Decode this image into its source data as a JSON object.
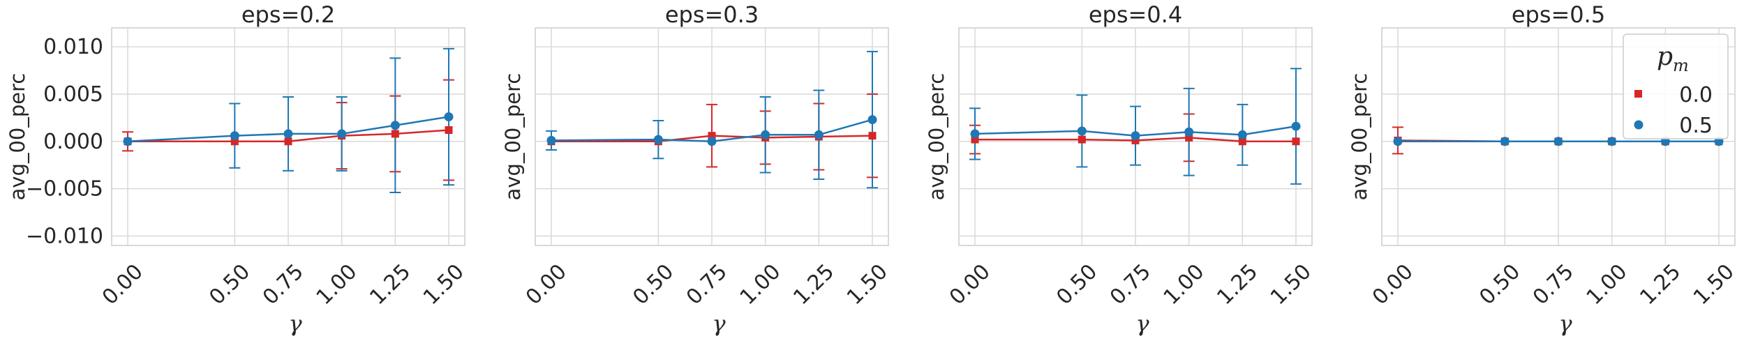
{
  "chart_data": [
    {
      "type": "line",
      "title": "eps=0.2",
      "xlabel": "γ",
      "ylabel": "avg_00_perc",
      "x": [
        0.0,
        0.5,
        0.75,
        1.0,
        1.25,
        1.5
      ],
      "xticks": [
        "0.00",
        "0.50",
        "0.75",
        "1.00",
        "1.25",
        "1.50"
      ],
      "ylim": [
        -0.011,
        0.012
      ],
      "yticks": [
        "−0.010",
        "−0.005",
        "0.000",
        "0.005",
        "0.010"
      ],
      "grid": true,
      "series": [
        {
          "name": "0.0",
          "color": "#d62728",
          "marker": "square",
          "values": [
            0.0,
            0.0,
            0.0,
            0.0006,
            0.0008,
            0.0012
          ],
          "errors": [
            0.001,
            0.0,
            0.0,
            0.0035,
            0.004,
            0.0053
          ]
        },
        {
          "name": "0.5",
          "color": "#1f77b4",
          "marker": "circle",
          "values": [
            0.0,
            0.0006,
            0.0008,
            0.0008,
            0.0017,
            0.0026
          ],
          "errors": [
            0.0,
            0.0034,
            0.0039,
            0.0039,
            0.0071,
            0.0072
          ]
        }
      ]
    },
    {
      "type": "line",
      "title": "eps=0.3",
      "xlabel": "γ",
      "ylabel": "avg_00_perc",
      "x": [
        0.0,
        0.5,
        0.75,
        1.0,
        1.25,
        1.5
      ],
      "xticks": [
        "0.00",
        "0.50",
        "0.75",
        "1.00",
        "1.25",
        "1.50"
      ],
      "ylim": [
        -0.011,
        0.012
      ],
      "yticks": [],
      "grid": true,
      "series": [
        {
          "name": "0.0",
          "color": "#d62728",
          "marker": "square",
          "values": [
            0.0,
            0.0,
            0.0006,
            0.0004,
            0.0005,
            0.0006
          ],
          "errors": [
            0.0,
            0.0,
            0.0033,
            0.0028,
            0.0035,
            0.0044
          ]
        },
        {
          "name": "0.5",
          "color": "#1f77b4",
          "marker": "circle",
          "values": [
            0.0001,
            0.0002,
            0.0,
            0.0007,
            0.0007,
            0.0023
          ],
          "errors": [
            0.001,
            0.002,
            0.0,
            0.004,
            0.0047,
            0.0072
          ]
        }
      ]
    },
    {
      "type": "line",
      "title": "eps=0.4",
      "xlabel": "γ",
      "ylabel": "avg_00_perc",
      "x": [
        0.0,
        0.5,
        0.75,
        1.0,
        1.25,
        1.5
      ],
      "xticks": [
        "0.00",
        "0.50",
        "0.75",
        "1.00",
        "1.25",
        "1.50"
      ],
      "ylim": [
        -0.011,
        0.012
      ],
      "yticks": [],
      "grid": true,
      "series": [
        {
          "name": "0.0",
          "color": "#d62728",
          "marker": "square",
          "values": [
            0.0002,
            0.0002,
            0.0001,
            0.0004,
            0.0,
            0.0
          ],
          "errors": [
            0.0015,
            0.0,
            0.0,
            0.0025,
            0.0,
            0.0
          ]
        },
        {
          "name": "0.5",
          "color": "#1f77b4",
          "marker": "circle",
          "values": [
            0.0008,
            0.0011,
            0.0006,
            0.001,
            0.0007,
            0.0016
          ],
          "errors": [
            0.0027,
            0.0038,
            0.0031,
            0.0046,
            0.0032,
            0.0061
          ]
        }
      ]
    },
    {
      "type": "line",
      "title": "eps=0.5",
      "xlabel": "γ",
      "ylabel": "avg_00_perc",
      "x": [
        0.0,
        0.5,
        0.75,
        1.0,
        1.25,
        1.5
      ],
      "xticks": [
        "0.00",
        "0.50",
        "0.75",
        "1.00",
        "1.25",
        "1.50"
      ],
      "ylim": [
        -0.011,
        0.012
      ],
      "yticks": [],
      "grid": true,
      "legend": {
        "title": "p_m",
        "title_base": "p",
        "title_sub": "m",
        "placement": "top-right"
      },
      "series": [
        {
          "name": "0.0",
          "color": "#d62728",
          "marker": "square",
          "values": [
            0.0001,
            0.0,
            0.0,
            0.0,
            0.0,
            0.0
          ],
          "errors": [
            0.0014,
            0.0,
            0.0,
            0.0,
            0.0,
            0.0
          ]
        },
        {
          "name": "0.5",
          "color": "#1f77b4",
          "marker": "circle",
          "values": [
            0.0,
            0.0,
            0.0,
            0.0,
            0.0,
            0.0
          ],
          "errors": [
            0.0,
            0.0,
            0.0,
            0.0,
            0.0,
            0.0
          ]
        }
      ]
    }
  ]
}
